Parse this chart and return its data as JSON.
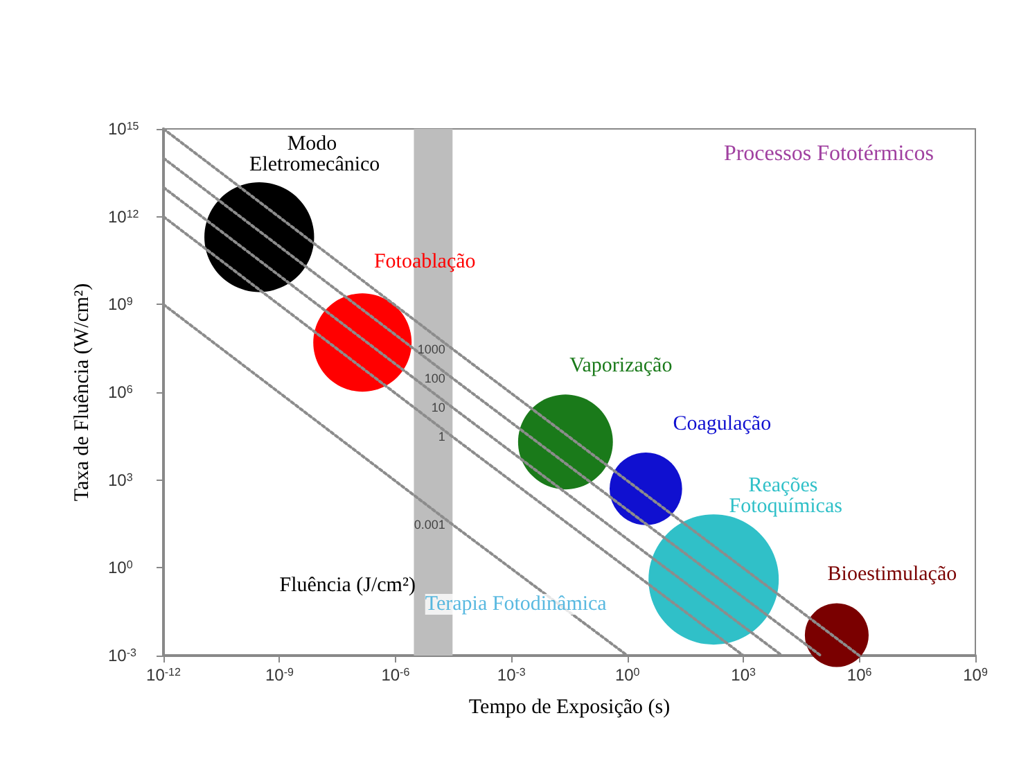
{
  "chart_data": {
    "type": "bubble",
    "xlabel": "Tempo de Exposição (s)",
    "ylabel": "Taxa de Fluência (W/cm²)",
    "log": "xy",
    "grid": false,
    "legend": false,
    "xlim": [
      1e-12,
      1000000000.0
    ],
    "ylim": [
      0.001,
      1000000000000000.0
    ],
    "xticks": [
      {
        "value": 1e-12,
        "label": "10$^{-12}$"
      },
      {
        "value": 1e-09,
        "label": "10$^{-9}$"
      },
      {
        "value": 1e-06,
        "label": "10$^{-6}$"
      },
      {
        "value": 0.001,
        "label": "10$^{-3}$"
      },
      {
        "value": 1,
        "label": "10$^{0}$"
      },
      {
        "value": 1000.0,
        "label": "10$^{3}$"
      },
      {
        "value": 1000000.0,
        "label": "10$^{6}$"
      },
      {
        "value": 1000000000.0,
        "label": "10$^{9}$"
      }
    ],
    "yticks": [
      {
        "value": 0.001,
        "label": "10$^{-3}$"
      },
      {
        "value": 1,
        "label": "10$^{0}$"
      },
      {
        "value": 1000.0,
        "label": "10$^{3}$"
      },
      {
        "value": 1000000.0,
        "label": "10$^{6}$"
      },
      {
        "value": 1000000000.0,
        "label": "10$^{9}$"
      },
      {
        "value": 1000000000000.0,
        "label": "10$^{12}$"
      },
      {
        "value": 1000000000000000.0,
        "label": "10$^{15}$"
      }
    ],
    "bands": [
      {
        "axis": "x",
        "from": 3e-06,
        "to": 3e-05,
        "label": "Fluência (J/cm²)",
        "color": "#bdbdbd"
      }
    ],
    "series": [
      {
        "name": "1000",
        "type": "line",
        "color": "#8c8c8c",
        "line_style": "dotted",
        "marker": "none",
        "x": [
          1e-12,
          3e-05,
          1000000.0
        ],
        "values": [
          1000000000000000.0,
          30000000.0,
          0.001
        ]
      },
      {
        "name": "100",
        "type": "line",
        "color": "#8c8c8c",
        "line_style": "dotted",
        "marker": "none",
        "x": [
          1e-12,
          3e-05,
          100000.0
        ],
        "values": [
          100000000000000.0,
          3000000.0,
          0.001
        ]
      },
      {
        "name": "10",
        "type": "line",
        "color": "#8c8c8c",
        "line_style": "dotted",
        "marker": "none",
        "x": [
          1e-12,
          3e-05,
          10000.0
        ],
        "values": [
          10000000000000.0,
          300000.0,
          0.001
        ]
      },
      {
        "name": "1",
        "type": "line",
        "color": "#8c8c8c",
        "line_style": "dotted",
        "marker": "none",
        "x": [
          1e-12,
          3e-05,
          1000.0
        ],
        "values": [
          1000000000000.0,
          30000.0,
          0.001
        ]
      },
      {
        "name": "0.001",
        "type": "line",
        "color": "#8c8c8c",
        "line_style": "dotted",
        "marker": "none",
        "x": [
          1e-12,
          3e-05,
          1
        ],
        "values": [
          1000000000.0,
          30,
          0.001
        ]
      },
      {
        "name": "Modo Eletromecânico",
        "color": "#000000",
        "x": [
          3e-10
        ],
        "values": [
          200000000000.0
        ],
        "sizes": [
          0.71
        ]
      },
      {
        "name": "Fotoablação",
        "color": "#ff0000",
        "x": [
          1.4e-07
        ],
        "values": [
          50000000.0
        ],
        "sizes": [
          0.57
        ]
      },
      {
        "name": "Vaporização",
        "color": "#1a7a1a",
        "x": [
          0.025
        ],
        "values": [
          20000.0
        ],
        "sizes": [
          0.53
        ]
      },
      {
        "name": "Coagulação",
        "color": "#1010d0",
        "x": [
          3
        ],
        "values": [
          500
        ],
        "sizes": [
          0.31
        ]
      },
      {
        "name": "Reações Fotoquímicas",
        "color": "#30c0c8",
        "x": [
          170
        ],
        "values": [
          0.4
        ],
        "sizes": [
          1
        ]
      },
      {
        "name": "Bioestimulação",
        "color": "#7a0000",
        "x": [
          260000.0
        ],
        "values": [
          0.005
        ],
        "sizes": [
          0.24
        ]
      }
    ],
    "annotations": [
      {
        "text": "Terapia Fotodinâmica",
        "x": 1,
        "y": 0.5
      },
      "Processos Fototérmicos"
    ]
  }
}
